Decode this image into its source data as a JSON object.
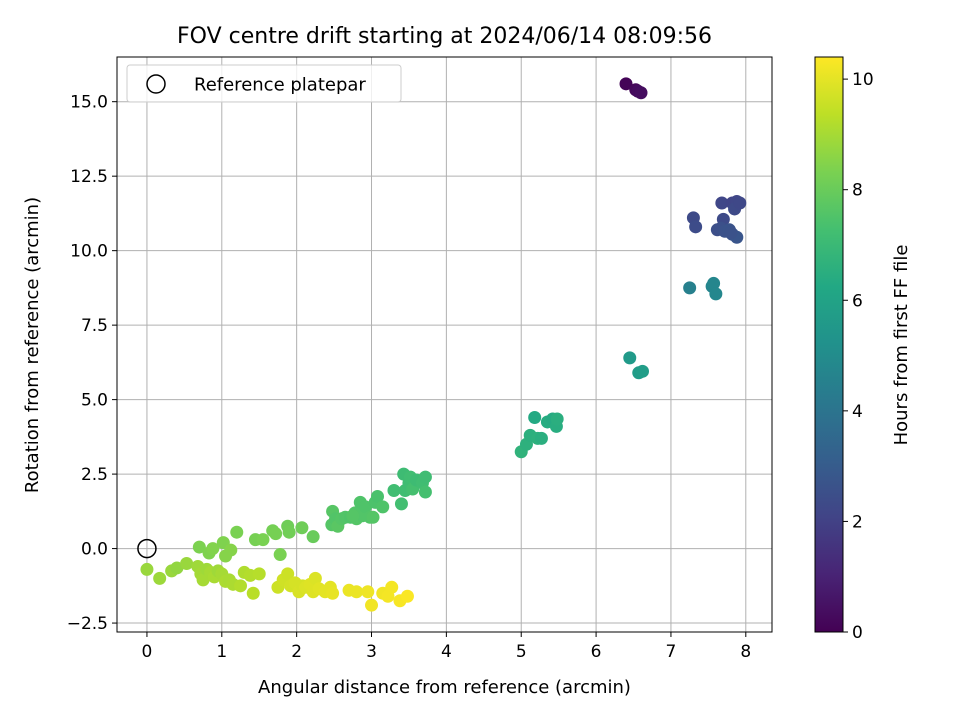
{
  "chart_data": {
    "type": "scatter",
    "title": "FOV centre drift starting at 2024/06/14 08:09:56",
    "xlabel": "Angular distance from reference (arcmin)",
    "ylabel": "Rotation from reference (arcmin)",
    "xlim": [
      -0.4,
      8.35
    ],
    "ylim": [
      -2.8,
      16.5
    ],
    "xticks": [
      0,
      1,
      2,
      3,
      4,
      5,
      6,
      7,
      8
    ],
    "xtick_labels": [
      "0",
      "1",
      "2",
      "3",
      "4",
      "5",
      "6",
      "7",
      "8"
    ],
    "yticks": [
      -2.5,
      0,
      2.5,
      5,
      7.5,
      10,
      12.5,
      15
    ],
    "ytick_labels": [
      "−2.5",
      "0.0",
      "2.5",
      "5.0",
      "7.5",
      "10.0",
      "12.5",
      "15.0"
    ],
    "grid": true,
    "legend": {
      "placement": "top-left",
      "entries": [
        "Reference platepar"
      ]
    },
    "reference_point": {
      "x": 0,
      "y": 0
    },
    "colorbar": {
      "label": "Hours from first FF file",
      "colormap": "viridis",
      "range": [
        0,
        10.4
      ],
      "ticks": [
        0,
        2,
        4,
        6,
        8,
        10
      ],
      "tick_labels": [
        "0",
        "2",
        "4",
        "6",
        "8",
        "10"
      ]
    },
    "points": [
      [
        6.4,
        15.6,
        0.1
      ],
      [
        6.53,
        15.4,
        0.2
      ],
      [
        6.56,
        15.35,
        0.3
      ],
      [
        6.6,
        15.3,
        0.35
      ],
      [
        7.3,
        11.1,
        2.3
      ],
      [
        7.33,
        10.8,
        2.4
      ],
      [
        7.68,
        11.6,
        2.2
      ],
      [
        7.7,
        11.05,
        2.3
      ],
      [
        7.82,
        11.6,
        2.1
      ],
      [
        7.88,
        11.65,
        2.2
      ],
      [
        7.85,
        11.4,
        2.3
      ],
      [
        7.92,
        11.6,
        2.25
      ],
      [
        7.62,
        10.7,
        2.5
      ],
      [
        7.67,
        10.75,
        2.55
      ],
      [
        7.72,
        10.65,
        2.6
      ],
      [
        7.78,
        10.7,
        2.65
      ],
      [
        7.82,
        10.55,
        2.7
      ],
      [
        7.88,
        10.45,
        2.75
      ],
      [
        7.8,
        10.6,
        2.6
      ],
      [
        7.25,
        8.75,
        4.5
      ],
      [
        7.55,
        8.8,
        4.7
      ],
      [
        7.57,
        8.9,
        4.75
      ],
      [
        7.6,
        8.55,
        4.8
      ],
      [
        6.45,
        6.4,
        5.6
      ],
      [
        6.57,
        5.9,
        5.7
      ],
      [
        6.62,
        5.95,
        5.75
      ],
      [
        5.0,
        3.25,
        6.7
      ],
      [
        5.07,
        3.5,
        6.6
      ],
      [
        5.12,
        3.8,
        6.55
      ],
      [
        5.18,
        4.4,
        6.3
      ],
      [
        5.22,
        3.7,
        6.6
      ],
      [
        5.27,
        3.7,
        6.5
      ],
      [
        5.35,
        4.25,
        6.4
      ],
      [
        5.42,
        4.35,
        6.35
      ],
      [
        5.47,
        4.1,
        6.45
      ],
      [
        5.48,
        4.35,
        6.5
      ],
      [
        3.3,
        1.95,
        7.2
      ],
      [
        3.4,
        1.5,
        7.25
      ],
      [
        3.43,
        2.5,
        7.1
      ],
      [
        3.45,
        1.95,
        7.2
      ],
      [
        3.5,
        2.2,
        7.15
      ],
      [
        3.52,
        2.4,
        7.2
      ],
      [
        3.55,
        2.0,
        7.3
      ],
      [
        3.6,
        2.3,
        7.1
      ],
      [
        3.68,
        2.2,
        7.2
      ],
      [
        3.72,
        2.4,
        7.15
      ],
      [
        3.72,
        1.9,
        7.3
      ],
      [
        2.47,
        0.8,
        7.6
      ],
      [
        2.48,
        1.25,
        7.65
      ],
      [
        2.52,
        1.0,
        7.55
      ],
      [
        2.55,
        0.75,
        7.7
      ],
      [
        2.6,
        1.0,
        7.6
      ],
      [
        2.65,
        1.05,
        7.55
      ],
      [
        2.72,
        1.05,
        7.5
      ],
      [
        2.78,
        1.2,
        7.55
      ],
      [
        2.8,
        1.0,
        7.6
      ],
      [
        2.85,
        1.55,
        7.5
      ],
      [
        2.88,
        1.1,
        7.55
      ],
      [
        2.92,
        1.4,
        7.5
      ],
      [
        2.98,
        1.05,
        7.55
      ],
      [
        3.02,
        1.05,
        7.6
      ],
      [
        3.05,
        1.55,
        7.45
      ],
      [
        3.08,
        1.75,
        7.4
      ],
      [
        3.15,
        1.4,
        7.5
      ],
      [
        2.75,
        1.1,
        7.6
      ],
      [
        0.7,
        0.05,
        8.35
      ],
      [
        0.83,
        -0.15,
        8.4
      ],
      [
        0.88,
        0.0,
        8.45
      ],
      [
        1.02,
        0.2,
        8.4
      ],
      [
        1.05,
        -0.25,
        8.5
      ],
      [
        1.12,
        -0.05,
        8.5
      ],
      [
        1.2,
        0.55,
        8.3
      ],
      [
        1.45,
        0.3,
        8.25
      ],
      [
        1.55,
        0.3,
        8.3
      ],
      [
        1.68,
        0.6,
        8.2
      ],
      [
        1.72,
        0.5,
        8.25
      ],
      [
        1.78,
        -0.2,
        8.3
      ],
      [
        1.88,
        0.75,
        8.1
      ],
      [
        1.9,
        0.55,
        8.15
      ],
      [
        2.07,
        0.7,
        8.1
      ],
      [
        2.22,
        0.4,
        8.0
      ],
      [
        0.0,
        -0.7,
        8.8
      ],
      [
        0.17,
        -1.0,
        8.85
      ],
      [
        0.33,
        -0.75,
        8.8
      ],
      [
        0.4,
        -0.65,
        8.7
      ],
      [
        0.53,
        -0.5,
        8.8
      ],
      [
        0.68,
        -0.6,
        8.9
      ],
      [
        0.72,
        -0.85,
        8.95
      ],
      [
        0.75,
        -1.05,
        9.0
      ],
      [
        0.8,
        -0.7,
        8.9
      ],
      [
        0.85,
        -0.8,
        9.0
      ],
      [
        0.9,
        -0.95,
        9.05
      ],
      [
        0.95,
        -0.75,
        8.9
      ],
      [
        1.0,
        -0.85,
        9.0
      ],
      [
        1.05,
        -1.1,
        9.1
      ],
      [
        1.1,
        -1.05,
        9.05
      ],
      [
        1.15,
        -1.2,
        9.1
      ],
      [
        1.25,
        -1.25,
        9.2
      ],
      [
        1.3,
        -0.8,
        9.15
      ],
      [
        1.38,
        -0.9,
        9.2
      ],
      [
        1.42,
        -1.5,
        9.3
      ],
      [
        1.5,
        -0.85,
        9.25
      ],
      [
        1.75,
        -1.3,
        9.6
      ],
      [
        1.82,
        -1.05,
        9.65
      ],
      [
        1.88,
        -0.85,
        9.6
      ],
      [
        1.92,
        -1.25,
        9.7
      ],
      [
        1.98,
        -1.15,
        9.75
      ],
      [
        2.03,
        -1.45,
        9.8
      ],
      [
        2.08,
        -1.25,
        9.75
      ],
      [
        2.12,
        -1.3,
        9.85
      ],
      [
        2.18,
        -1.2,
        9.9
      ],
      [
        2.22,
        -1.45,
        9.9
      ],
      [
        2.25,
        -1.0,
        9.85
      ],
      [
        2.3,
        -1.35,
        9.95
      ],
      [
        2.38,
        -1.45,
        10.0
      ],
      [
        2.45,
        -1.3,
        10.0
      ],
      [
        2.48,
        -1.5,
        10.05
      ],
      [
        2.7,
        -1.4,
        10.1
      ],
      [
        2.8,
        -1.45,
        10.1
      ],
      [
        2.95,
        -1.45,
        10.15
      ],
      [
        3.0,
        -1.9,
        10.2
      ],
      [
        3.15,
        -1.5,
        10.2
      ],
      [
        3.22,
        -1.6,
        10.25
      ],
      [
        3.27,
        -1.3,
        10.25
      ],
      [
        3.38,
        -1.75,
        10.3
      ],
      [
        3.48,
        -1.6,
        10.35
      ]
    ]
  }
}
